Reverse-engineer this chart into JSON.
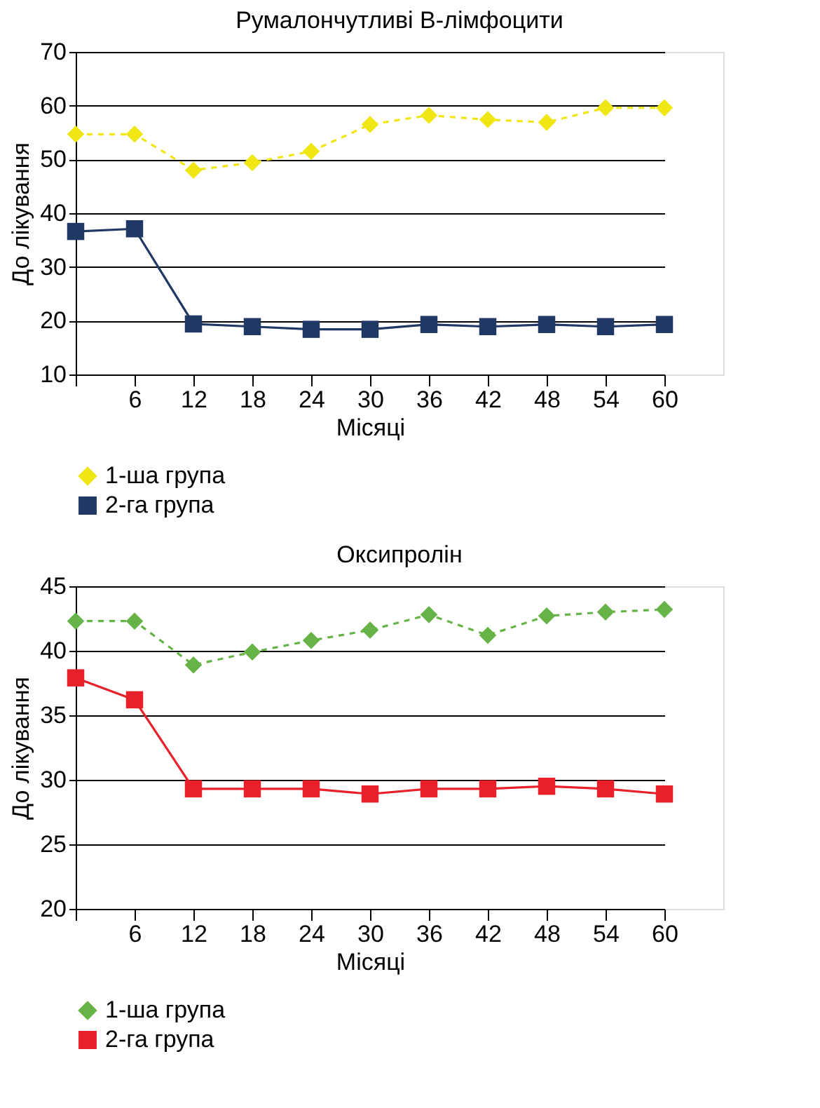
{
  "chart_data": [
    {
      "type": "line",
      "title": "Румалончутливі В-лімфоцити",
      "xlabel": "Місяці",
      "ylabel": "До лікування",
      "categories": [
        null,
        "6",
        "12",
        "18",
        "24",
        "30",
        "36",
        "42",
        "48",
        "54",
        "60"
      ],
      "ylim": [
        10,
        70
      ],
      "yticks": [
        10,
        20,
        30,
        40,
        50,
        60,
        70
      ],
      "grid": "y",
      "legend": "bottom",
      "series": [
        {
          "name": "1-ша група",
          "color": "#f0e614",
          "marker": "diamond",
          "line_style": "dashed",
          "values": [
            54.7,
            54.7,
            48,
            49.4,
            51.5,
            56.5,
            58.2,
            57.4,
            56.9,
            59.6,
            59.6
          ]
        },
        {
          "name": "2-га група",
          "color": "#1f3864",
          "marker": "square",
          "line_style": "solid",
          "values": [
            36.6,
            37.1,
            19.4,
            18.9,
            18.4,
            18.4,
            19.3,
            18.9,
            19.3,
            18.9,
            19.3
          ]
        }
      ]
    },
    {
      "type": "line",
      "title": "Оксипролін",
      "xlabel": "Місяці",
      "ylabel": "До лікування",
      "categories": [
        null,
        "6",
        "12",
        "18",
        "24",
        "30",
        "36",
        "42",
        "48",
        "54",
        "60"
      ],
      "ylim": [
        20,
        45
      ],
      "yticks": [
        20,
        25,
        30,
        35,
        40,
        45
      ],
      "grid": "y",
      "legend": "bottom",
      "series": [
        {
          "name": "1-ша група",
          "color": "#66b447",
          "marker": "diamond",
          "line_style": "dashed",
          "values": [
            42.3,
            42.3,
            38.9,
            39.9,
            40.8,
            41.6,
            42.8,
            41.2,
            42.7,
            43.0,
            43.2
          ]
        },
        {
          "name": "2-га група",
          "color": "#e8202a",
          "marker": "square",
          "line_style": "solid",
          "values": [
            37.9,
            36.2,
            29.3,
            29.3,
            29.3,
            28.9,
            29.3,
            29.3,
            29.5,
            29.3,
            28.9
          ]
        }
      ]
    }
  ]
}
